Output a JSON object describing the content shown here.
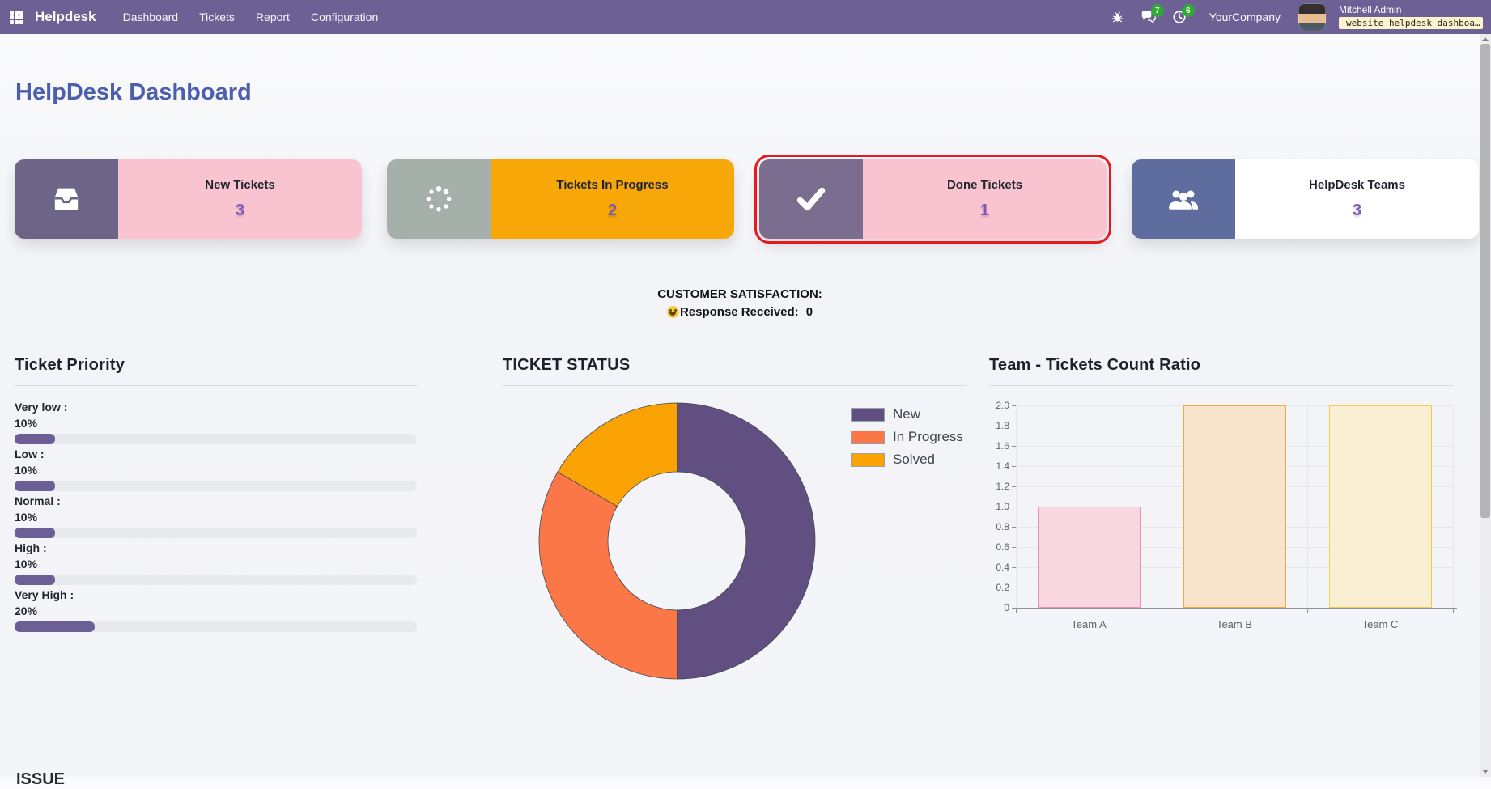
{
  "navbar": {
    "brand": "Helpdesk",
    "menu": [
      "Dashboard",
      "Tickets",
      "Report",
      "Configuration"
    ],
    "company": "YourCompany",
    "user_name": "Mitchell Admin",
    "database": "website_helpdesk_dashboa…",
    "message_badge": "7",
    "activity_badge": "6",
    "bg_color": "#6d6095",
    "badge_color": "#30a938"
  },
  "page": {
    "title": "HelpDesk Dashboard",
    "title_color": "#4c5fae",
    "clipped_heading": "ISSUE"
  },
  "value_color": "#7d57ba",
  "cards": [
    {
      "title": "New Tickets",
      "value": "3",
      "icon": "inbox-icon",
      "left_color": "#6d6587",
      "body_color": "#f9c3cf",
      "highlighted": false
    },
    {
      "title": "Tickets In Progress",
      "value": "2",
      "icon": "spinner-icon",
      "left_color": "#a6b0ab",
      "body_color": "#f8a709",
      "highlighted": false
    },
    {
      "title": "Done Tickets",
      "value": "1",
      "icon": "check-icon",
      "left_color": "#7b6d90",
      "body_color": "#f9c3cf",
      "highlighted": true,
      "highlight_color": "#e6191f"
    },
    {
      "title": "HelpDesk Teams",
      "value": "3",
      "icon": "users-icon",
      "left_color": "#5e6d9d",
      "body_color": "#ffffff",
      "highlighted": false
    }
  ],
  "satisfaction": {
    "title": "CUSTOMER SATISFACTION:",
    "response_label": "Response Received:",
    "response_value": "0"
  },
  "chart_data": [
    {
      "type": "bar",
      "subtype": "horizontal-progress",
      "title": "Ticket Priority",
      "categories": [
        "Very low",
        "Low",
        "Normal",
        "High",
        "Very High"
      ],
      "values": [
        10,
        10,
        10,
        10,
        20
      ],
      "unit": "%",
      "items": [
        {
          "label": "Very low :",
          "pct": "10%",
          "value": 10
        },
        {
          "label": "Low :",
          "pct": "10%",
          "value": 10
        },
        {
          "label": "Normal :",
          "pct": "10%",
          "value": 10
        },
        {
          "label": "High :",
          "pct": "10%",
          "value": 10
        },
        {
          "label": "Very High :",
          "pct": "20%",
          "value": 20
        }
      ],
      "bar_color": "#6b5f96",
      "track_color": "#e8e9ec"
    },
    {
      "type": "pie",
      "donut": true,
      "title": "TICKET STATUS",
      "labels": [
        "New",
        "In Progress",
        "Solved"
      ],
      "values": [
        3,
        2,
        1
      ],
      "colors": [
        "#614f82",
        "#fb7747",
        "#fba204"
      ],
      "legend_position": "right"
    },
    {
      "type": "bar",
      "title": "Team - Tickets Count Ratio",
      "categories": [
        "Team A",
        "Team B",
        "Team C"
      ],
      "values": [
        1,
        2,
        2
      ],
      "ylim": [
        0,
        2
      ],
      "yticks": [
        "0",
        "0.2",
        "0.4",
        "0.6",
        "0.8",
        "1.0",
        "1.2",
        "1.4",
        "1.6",
        "1.8",
        "2.0"
      ],
      "grid": true,
      "bar_fill": [
        "#f8d7e0",
        "#f8e4cd",
        "#f9efd3"
      ],
      "bar_stroke": [
        "#ef93ad",
        "#f6a93c",
        "#f2cb52"
      ]
    }
  ]
}
